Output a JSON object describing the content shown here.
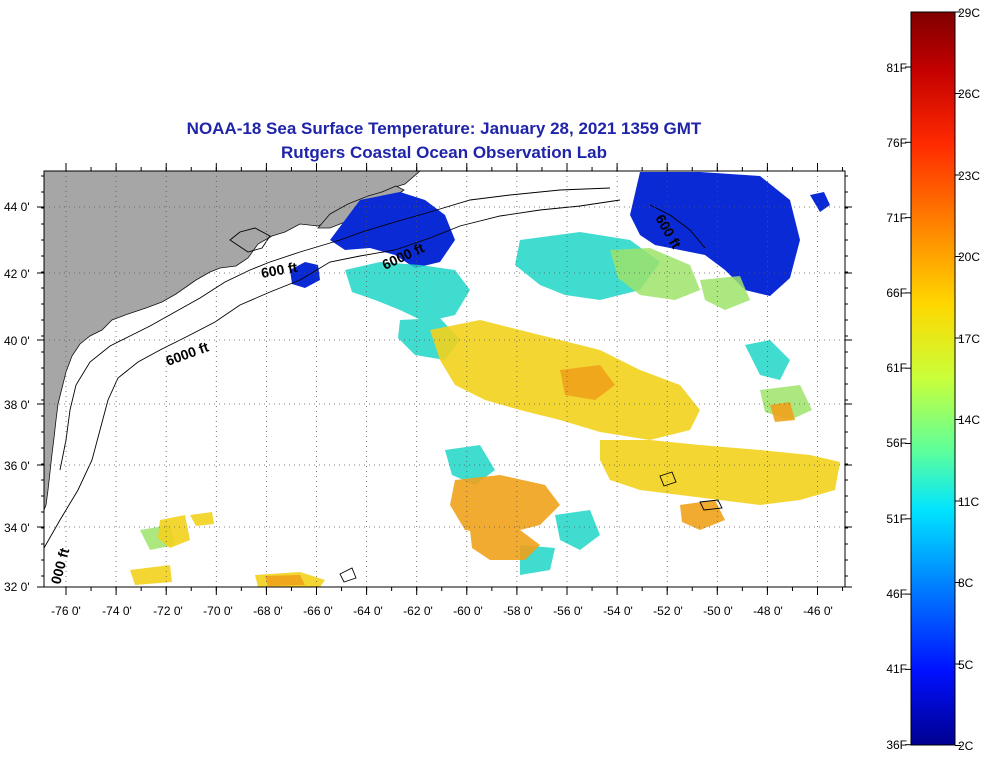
{
  "title": "NOAA-18 Sea Surface Temperature:  January 28, 2021 1359 GMT",
  "subtitle": "Rutgers Coastal Ocean Observation Lab",
  "lat_labels": [
    "44 0'",
    "42 0'",
    "40 0'",
    "38 0'",
    "36 0'",
    "34 0'",
    "32 0'"
  ],
  "lon_labels": [
    "-76 0'",
    "-74 0'",
    "-72 0'",
    "-70 0'",
    "-68 0'",
    "-66 0'",
    "-64 0'",
    "-62 0'",
    "-60 0'",
    "-58 0'",
    "-56 0'",
    "-54 0'",
    "-52 0'",
    "-50 0'",
    "-48 0'",
    "-46 0'"
  ],
  "contour_labels": [
    "600 ft",
    "6000 ft",
    "6000 ft",
    "600 ft",
    "000 ft"
  ],
  "colorbar": {
    "celsius_labels": [
      "29C",
      "26C",
      "23C",
      "20C",
      "17C",
      "14C",
      "11C",
      "8C",
      "5C",
      "2C"
    ],
    "fahrenheit_labels": [
      "81F",
      "76F",
      "71F",
      "66F",
      "61F",
      "56F",
      "51F",
      "46F",
      "41F",
      "36F"
    ],
    "colors": [
      "#7f0000",
      "#c40000",
      "#ff2a00",
      "#ff8a00",
      "#ffd800",
      "#c8ff3a",
      "#5cff9c",
      "#00e4ff",
      "#0082ff",
      "#0010ff",
      "#00008f"
    ]
  },
  "map_colors": {
    "land": "#a6a6a6",
    "ocean": "#ffffff",
    "cold": "#0a2ad6",
    "cool": "#1fd6c8",
    "mild": "#9ee36a",
    "warm": "#f2d21c",
    "hot": "#f0a21a"
  }
}
